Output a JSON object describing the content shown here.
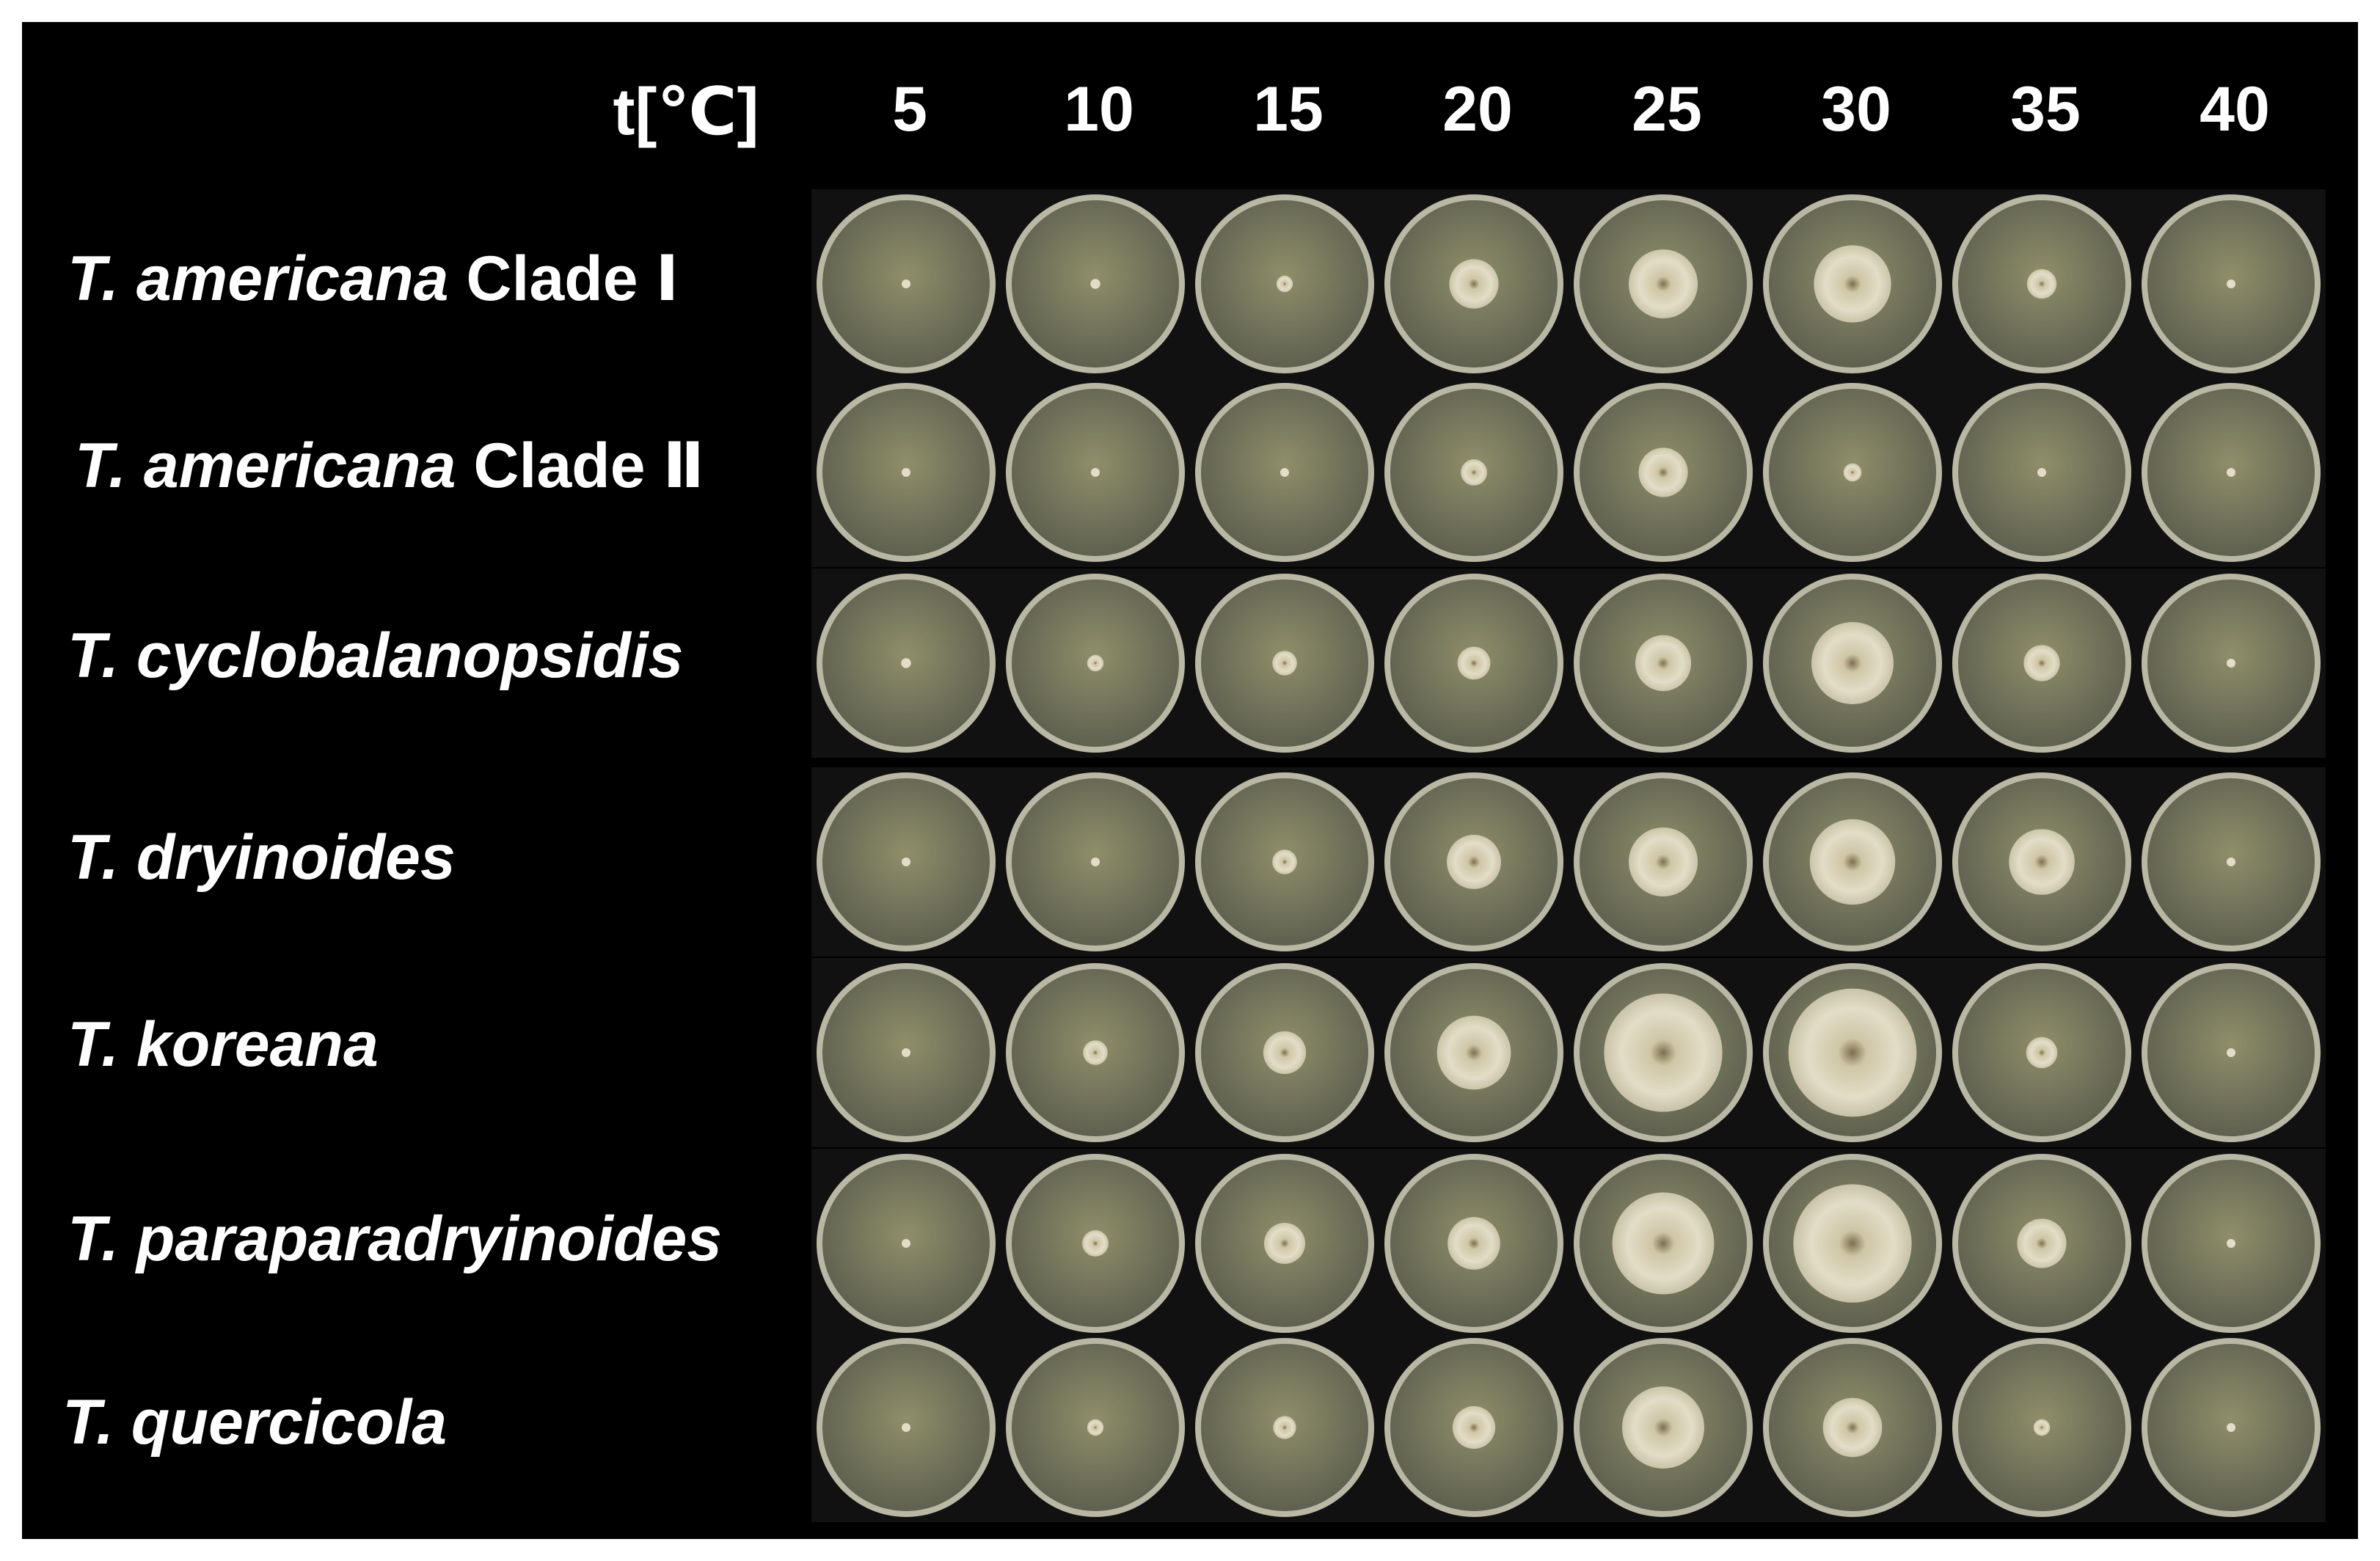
{
  "figure": {
    "background": "#000000",
    "header_label": "t[℃]",
    "temperatures": [
      "5",
      "10",
      "15",
      "20",
      "25",
      "30",
      "35",
      "40"
    ],
    "rows": [
      {
        "italic": "T. americana",
        "suffix": " Clade Ⅰ"
      },
      {
        "italic": "T. americana",
        "suffix": " Clade Ⅱ"
      },
      {
        "italic": "T. cyclobalanopsidis",
        "suffix": ""
      },
      {
        "italic": "T. dryinoides",
        "suffix": ""
      },
      {
        "italic": "T. koreana",
        "suffix": ""
      },
      {
        "italic": "T. paraparadryinoides",
        "suffix": ""
      },
      {
        "italic": "T. quercicola",
        "suffix": ""
      }
    ],
    "colony_size_relative": [
      [
        0.05,
        0.06,
        0.1,
        0.3,
        0.42,
        0.47,
        0.18,
        0.04
      ],
      [
        0.05,
        0.05,
        0.04,
        0.16,
        0.3,
        0.11,
        0.05,
        0.04
      ],
      [
        0.06,
        0.1,
        0.15,
        0.2,
        0.34,
        0.5,
        0.22,
        0.04
      ],
      [
        0.04,
        0.05,
        0.15,
        0.33,
        0.42,
        0.52,
        0.4,
        0.04
      ],
      [
        0.05,
        0.15,
        0.26,
        0.45,
        0.72,
        0.78,
        0.19,
        0.04
      ],
      [
        0.05,
        0.16,
        0.25,
        0.32,
        0.62,
        0.72,
        0.3,
        0.05
      ],
      [
        0.04,
        0.1,
        0.14,
        0.26,
        0.5,
        0.36,
        0.1,
        0.04
      ]
    ],
    "colors": {
      "agar": "#8f8e6a",
      "agar_dark": "#5f6150",
      "rim": "#b9b8a4",
      "colony": "#e3ddc8",
      "colony_center": "#7d6f4f"
    }
  }
}
